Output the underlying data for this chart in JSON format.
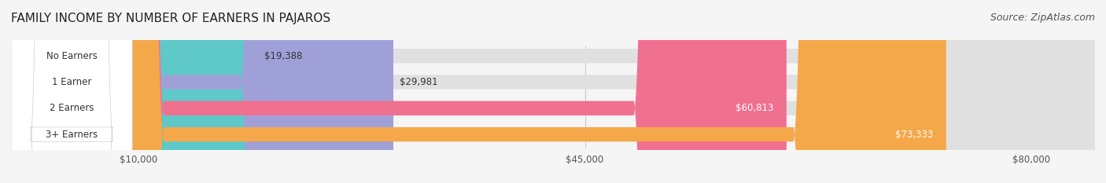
{
  "title": "FAMILY INCOME BY NUMBER OF EARNERS IN PAJAROS",
  "source": "Source: ZipAtlas.com",
  "categories": [
    "No Earners",
    "1 Earner",
    "2 Earners",
    "3+ Earners"
  ],
  "values": [
    19388,
    29981,
    60813,
    73333
  ],
  "bar_colors": [
    "#5fc8c8",
    "#a0a0d8",
    "#f07090",
    "#f5a84a"
  ],
  "bar_bg_color": "#e8e8e8",
  "label_bg_color": "#ffffff",
  "x_ticks": [
    10000,
    45000,
    80000
  ],
  "x_tick_labels": [
    "$10,000",
    "$45,000",
    "$80,000"
  ],
  "x_max": 85000,
  "x_min": 0,
  "value_labels": [
    "$19,388",
    "$29,981",
    "$60,813",
    "$73,333"
  ],
  "fig_bg_color": "#f5f5f5",
  "title_fontsize": 11,
  "source_fontsize": 9
}
